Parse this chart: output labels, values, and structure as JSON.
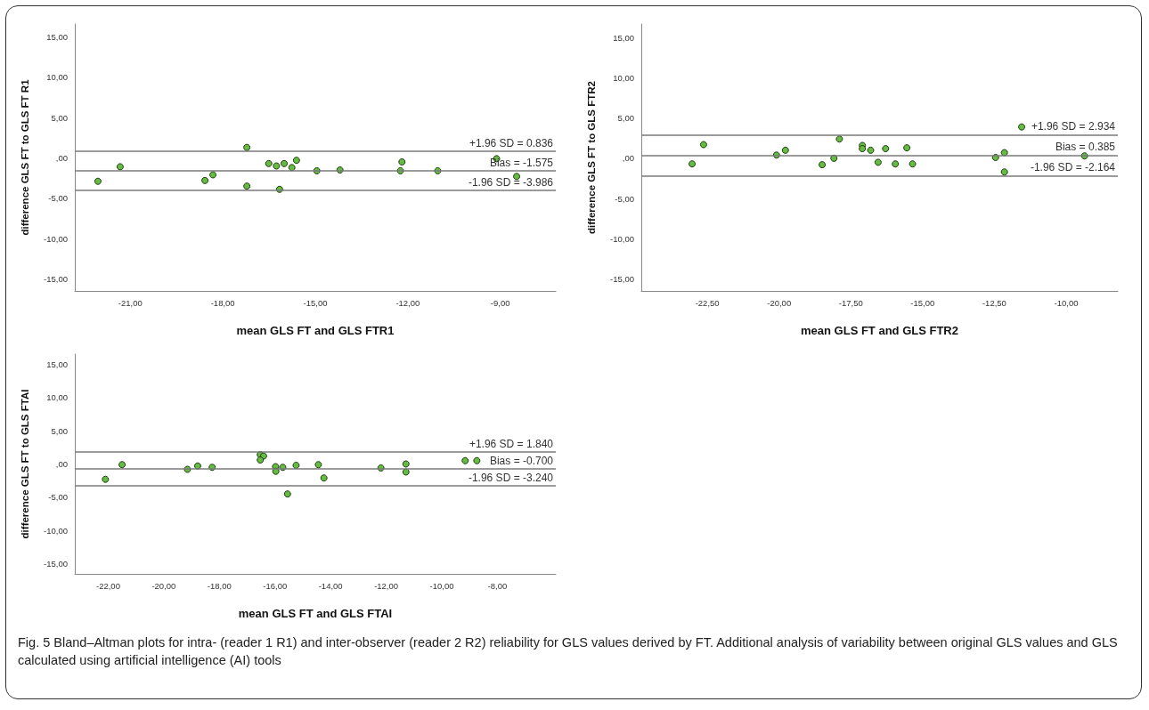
{
  "chart_data": [
    {
      "type": "scatter",
      "xlabel": "mean GLS FT and GLS FTR1",
      "ylabel": "difference GLS FT to GLS FT R1",
      "color": "#66bb44",
      "marker": "circle",
      "grid": false,
      "x": [
        -22.05,
        -21.33,
        -18.58,
        -18.32,
        -17.22,
        -17.22,
        -16.51,
        -16.26,
        -16.16,
        -16.01,
        -15.76,
        -15.61,
        -14.95,
        -14.2,
        -12.24,
        -12.19,
        -11.03,
        -9.12,
        -8.47
      ],
      "values": [
        -2.9,
        -1.1,
        -2.8,
        -2.1,
        1.3,
        -3.5,
        -0.7,
        -1.0,
        -3.9,
        -0.7,
        -1.2,
        -0.3,
        -1.6,
        -1.5,
        -1.6,
        -0.5,
        -1.6,
        -0.1,
        -2.3
      ],
      "xlim": [
        -22.8,
        -7.2
      ],
      "ylim": [
        -16.5,
        16.6
      ],
      "xticks": [
        {
          "value": -21,
          "label": "-21,00"
        },
        {
          "value": -18,
          "label": "-18,00"
        },
        {
          "value": -15,
          "label": "-15,00"
        },
        {
          "value": -12,
          "label": "-12,00"
        },
        {
          "value": -9,
          "label": "-9,00"
        }
      ],
      "yticks": [
        {
          "value": -15,
          "label": "-15,00"
        },
        {
          "value": -10,
          "label": "-10,00"
        },
        {
          "value": -5,
          "label": "-5,00"
        },
        {
          "value": 0,
          "label": ",00"
        },
        {
          "value": 5,
          "label": "5,00"
        },
        {
          "value": 10,
          "label": "10,00"
        },
        {
          "value": 15,
          "label": "15,00"
        }
      ],
      "ref_lines": [
        {
          "axis": "y",
          "value": 0.836,
          "label": "+1.96 SD = 0.836"
        },
        {
          "axis": "y",
          "value": -1.575,
          "label": "Bias = -1.575"
        },
        {
          "axis": "y",
          "value": -3.986,
          "label": "-1.96 SD = -3.986"
        }
      ]
    },
    {
      "type": "scatter",
      "xlabel": "mean GLS FT and GLS FTR2",
      "ylabel": "difference GLS FT to GLS FTR2",
      "color": "#66bb44",
      "marker": "circle",
      "grid": false,
      "x": [
        -23.03,
        -22.63,
        -20.09,
        -19.78,
        -18.5,
        -18.09,
        -17.9,
        -17.1,
        -17.1,
        -16.81,
        -16.55,
        -16.29,
        -15.95,
        -15.55,
        -15.35,
        -12.46,
        -12.15,
        -12.15,
        -11.55,
        -9.36
      ],
      "values": [
        -0.7,
        1.7,
        0.4,
        1.0,
        -0.8,
        0.0,
        2.4,
        1.6,
        1.2,
        1.0,
        -0.5,
        1.2,
        -0.7,
        1.3,
        -0.7,
        0.1,
        0.7,
        -1.7,
        3.9,
        0.3
      ],
      "xlim": [
        -24.8,
        -8.2
      ],
      "ylim": [
        -16.5,
        16.7
      ],
      "xticks": [
        {
          "value": -22.5,
          "label": "-22,50"
        },
        {
          "value": -20,
          "label": "-20,00"
        },
        {
          "value": -17.5,
          "label": "-17,50"
        },
        {
          "value": -15,
          "label": "-15,00"
        },
        {
          "value": -12.5,
          "label": "-12,50"
        },
        {
          "value": -10,
          "label": "-10,00"
        }
      ],
      "yticks": [
        {
          "value": -15,
          "label": "-15,00"
        },
        {
          "value": -10,
          "label": "-10,00"
        },
        {
          "value": -5,
          "label": "-5,00"
        },
        {
          "value": 0,
          "label": ",00"
        },
        {
          "value": 5,
          "label": "5,00"
        },
        {
          "value": 10,
          "label": "10,00"
        },
        {
          "value": 15,
          "label": "15,00"
        }
      ],
      "ref_lines": [
        {
          "axis": "y",
          "value": 2.934,
          "label": "+1.96 SD = 2.934"
        },
        {
          "axis": "y",
          "value": 0.385,
          "label": "Bias = 0.385"
        },
        {
          "axis": "y",
          "value": -2.164,
          "label": "-1.96 SD = -2.164"
        }
      ]
    },
    {
      "type": "scatter",
      "xlabel": "mean GLS FT and GLS FTAI",
      "ylabel": "difference GLS FT to GLS FTAI",
      "color": "#66bb44",
      "marker": "circle",
      "grid": false,
      "x": [
        -22.1,
        -21.5,
        -19.15,
        -18.78,
        -18.26,
        -16.53,
        -16.41,
        -16.53,
        -15.98,
        -15.97,
        -15.72,
        -15.55,
        -15.24,
        -14.44,
        -14.24,
        -12.19,
        -11.29,
        -11.29,
        -9.16,
        -8.74
      ],
      "values": [
        -2.3,
        -0.1,
        -0.8,
        -0.3,
        -0.5,
        1.4,
        1.2,
        0.6,
        -0.4,
        -1.1,
        -0.5,
        -4.5,
        -0.2,
        -0.1,
        -2.1,
        -0.6,
        0.0,
        -1.2,
        0.5,
        0.5
      ],
      "xlim": [
        -23.2,
        -5.9
      ],
      "ylim": [
        -16.5,
        16.5
      ],
      "xticks": [
        {
          "value": -22,
          "label": "-22,00"
        },
        {
          "value": -20,
          "label": "-20,00"
        },
        {
          "value": -18,
          "label": "-18,00"
        },
        {
          "value": -16,
          "label": "-16,00"
        },
        {
          "value": -14,
          "label": "-14,00"
        },
        {
          "value": -12,
          "label": "-12,00"
        },
        {
          "value": -10,
          "label": "-10,00"
        },
        {
          "value": -8,
          "label": "-8,00"
        }
      ],
      "yticks": [
        {
          "value": -15,
          "label": "-15,00"
        },
        {
          "value": -10,
          "label": "-10,00"
        },
        {
          "value": -5,
          "label": "-5,00"
        },
        {
          "value": 0,
          "label": ",00"
        },
        {
          "value": 5,
          "label": "5,00"
        },
        {
          "value": 10,
          "label": "10,00"
        },
        {
          "value": 15,
          "label": "15,00"
        }
      ],
      "ref_lines": [
        {
          "axis": "y",
          "value": 1.84,
          "label": "+1.96 SD = 1.840"
        },
        {
          "axis": "y",
          "value": -0.7,
          "label": "Bias = -0.700"
        },
        {
          "axis": "y",
          "value": -3.24,
          "label": "-1.96 SD = -3.240"
        }
      ],
      "annotations": [
        "Fig. 5 Bland–Altman plots for intra- (reader 1 R1) and inter-observer (reader 2 R2) reliability for GLS values derived by FT. Additional analysis of variability between original GLS values and GLS calculated using artificial intelligence (AI) tools"
      ]
    }
  ]
}
